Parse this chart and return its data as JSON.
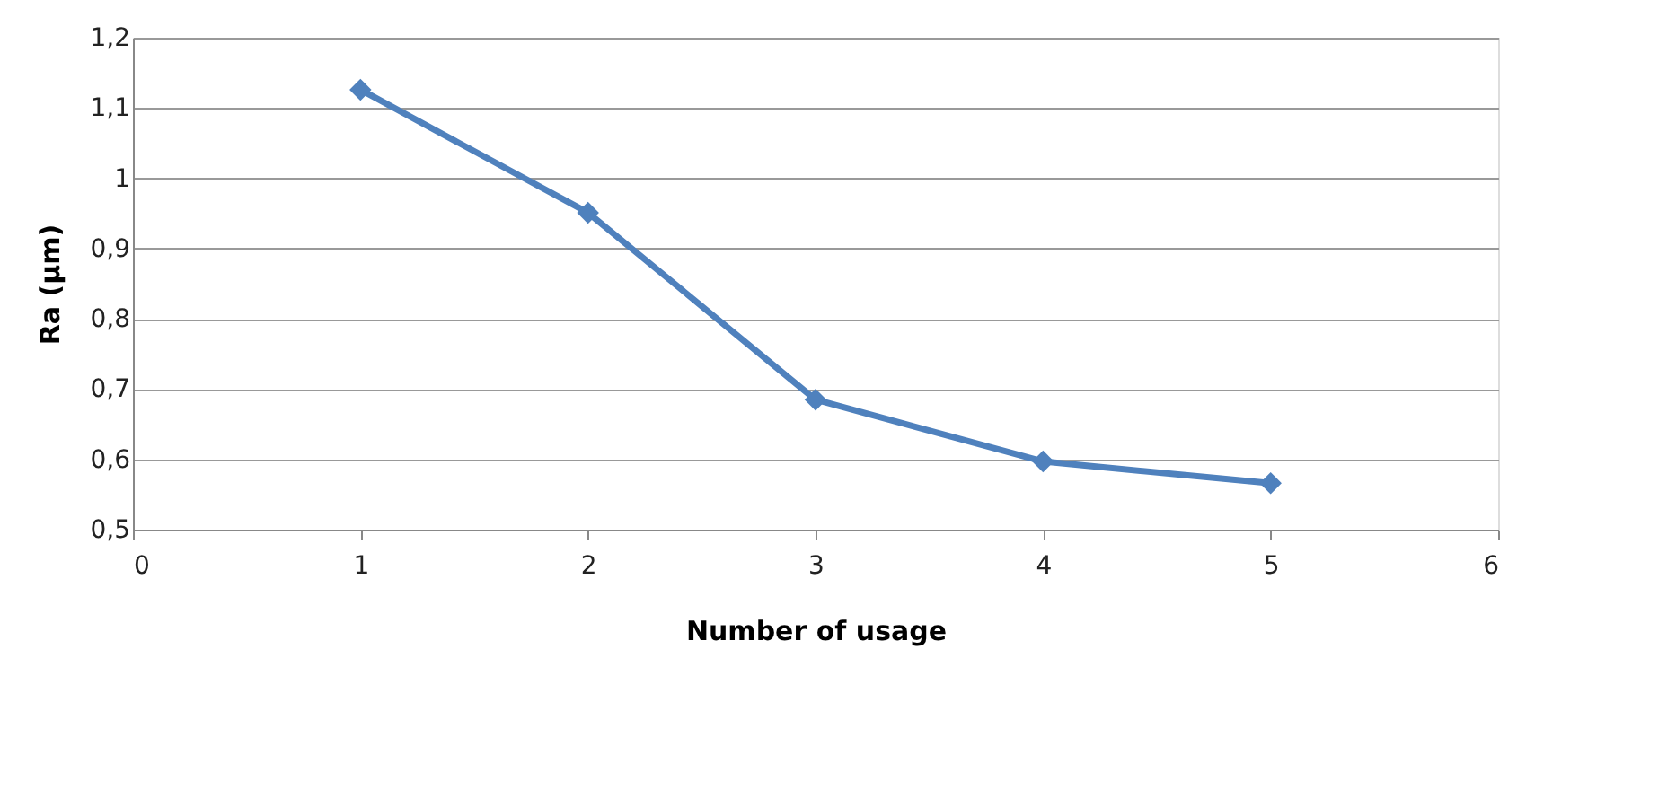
{
  "chart_data": {
    "type": "line",
    "xlabel": "Number of usage",
    "ylabel": "Ra (µm)",
    "x": [
      1,
      2,
      3,
      4,
      5
    ],
    "series": [
      {
        "color": "#4f81bd",
        "values": [
          1.126,
          0.951,
          0.685,
          0.597,
          0.566
        ]
      }
    ],
    "xlim": [
      0,
      6
    ],
    "xticks": [
      0,
      1,
      2,
      3,
      4,
      5,
      6
    ],
    "ylim": [
      0.5,
      1.2
    ],
    "yticks": [
      {
        "value": 0.5,
        "label": "0,5"
      },
      {
        "value": 0.6,
        "label": "0,6"
      },
      {
        "value": 0.7,
        "label": "0,7"
      },
      {
        "value": 0.8,
        "label": "0,8"
      },
      {
        "value": 0.9,
        "label": "0,9"
      },
      {
        "value": 1,
        "label": "1"
      },
      {
        "value": 1.1,
        "label": "1,1"
      },
      {
        "value": 1.2,
        "label": "1,2"
      }
    ],
    "grid": "y",
    "marker": "diamond",
    "line_style": "solid"
  }
}
